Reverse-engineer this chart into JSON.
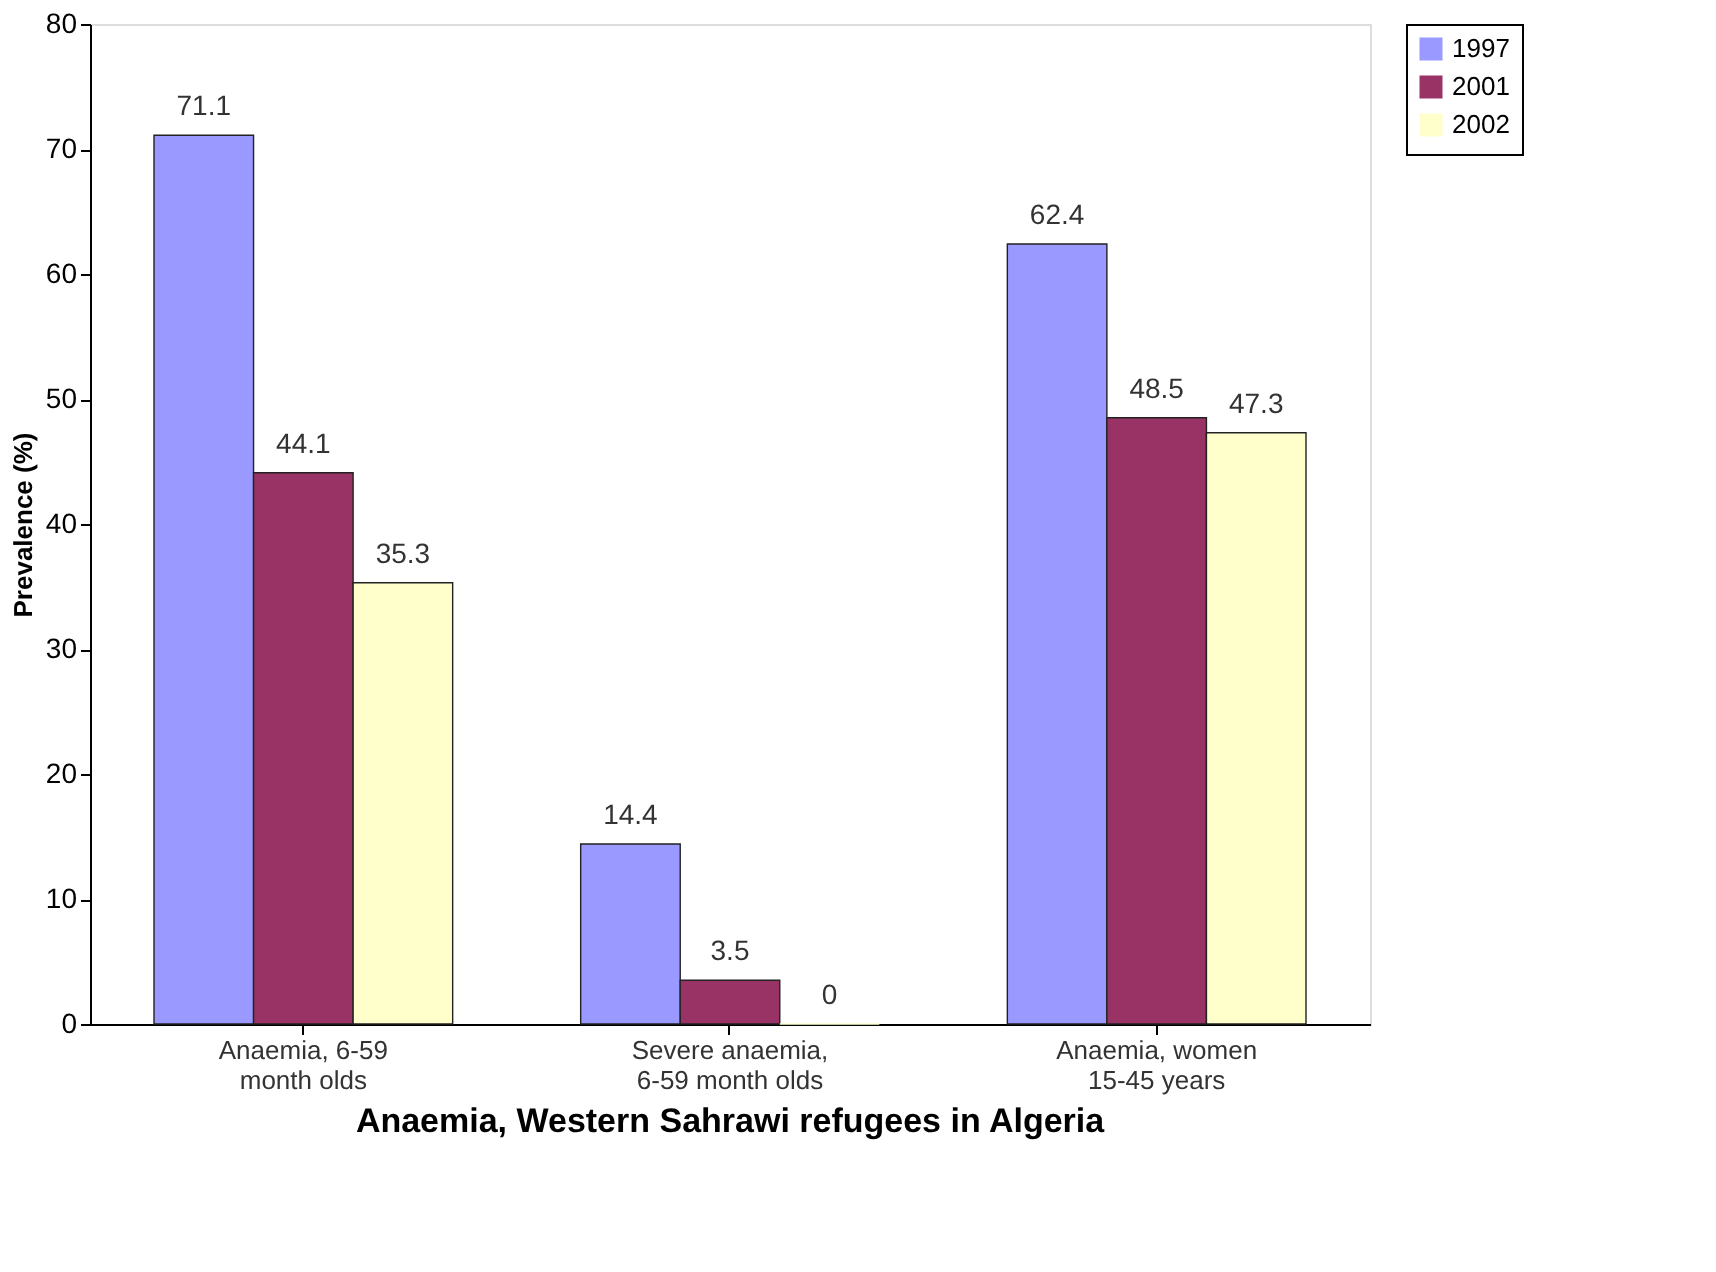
{
  "chart_data": {
    "type": "bar",
    "title": "Anaemia, Western Sahrawi refugees in Algeria",
    "ylabel": "Prevalence (%)",
    "categories": [
      "Anaemia, 6-59 month olds",
      "Severe anaemia, 6-59 month olds",
      "Anaemia, women 15-45 years"
    ],
    "series": [
      {
        "name": "1997",
        "color": "#9999ff",
        "values": [
          71.1,
          14.4,
          62.4
        ]
      },
      {
        "name": "2001",
        "color": "#993366",
        "values": [
          44.1,
          3.5,
          48.5
        ]
      },
      {
        "name": "2002",
        "color": "#ffffcc",
        "values": [
          35.3,
          0,
          47.3
        ]
      }
    ],
    "ylim": [
      0,
      80
    ],
    "yticks": [
      0,
      10,
      20,
      30,
      40,
      50,
      60,
      70,
      80
    ],
    "data_labels": true,
    "grid": false,
    "legend": "right"
  }
}
